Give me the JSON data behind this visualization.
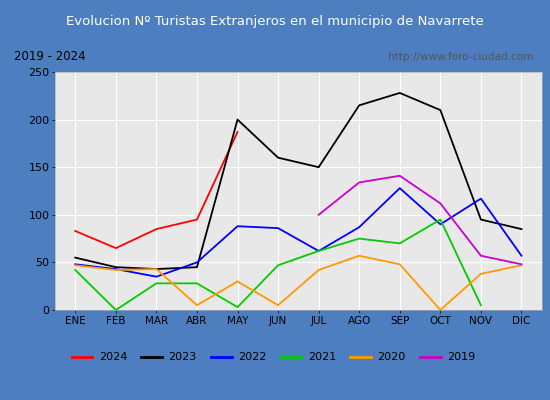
{
  "title": "Evolucion Nº Turistas Extranjeros en el municipio de Navarrete",
  "subtitle_left": "2019 - 2024",
  "subtitle_right": "http://www.foro-ciudad.com",
  "months": [
    "ENE",
    "FEB",
    "MAR",
    "ABR",
    "MAY",
    "JUN",
    "JUL",
    "AGO",
    "SEP",
    "OCT",
    "NOV",
    "DIC"
  ],
  "series": {
    "2024": [
      83,
      65,
      85,
      95,
      187,
      null,
      null,
      null,
      null,
      null,
      null,
      null
    ],
    "2023": [
      55,
      45,
      43,
      45,
      200,
      160,
      150,
      215,
      228,
      210,
      95,
      85
    ],
    "2022": [
      48,
      43,
      35,
      50,
      88,
      86,
      62,
      87,
      128,
      90,
      117,
      57
    ],
    "2021": [
      42,
      0,
      28,
      28,
      3,
      47,
      62,
      75,
      70,
      95,
      5,
      null
    ],
    "2020": [
      47,
      42,
      43,
      5,
      30,
      5,
      42,
      57,
      48,
      0,
      38,
      47
    ],
    "2019": [
      null,
      null,
      null,
      null,
      null,
      null,
      100,
      134,
      141,
      112,
      57,
      48
    ]
  },
  "colors": {
    "2024": "#ff0000",
    "2023": "#000000",
    "2022": "#0000ff",
    "2021": "#00cc00",
    "2020": "#ff9900",
    "2019": "#cc00cc"
  },
  "ylim": [
    0,
    250
  ],
  "yticks": [
    0,
    50,
    100,
    150,
    200,
    250
  ],
  "title_bg": "#4d7ebf",
  "title_color": "#ffffff",
  "plot_bg": "#e8e8e8",
  "outer_bg": "#c8d4e8",
  "chart_bg": "#f0f0f0",
  "border_color": "#4d7ebf"
}
